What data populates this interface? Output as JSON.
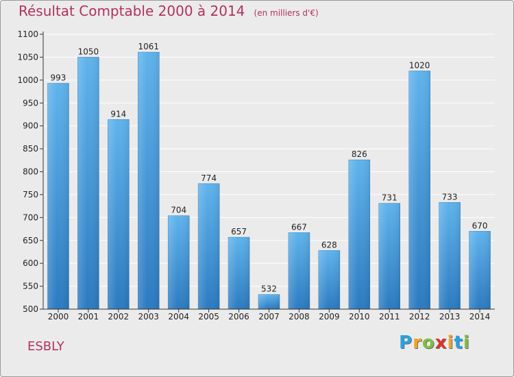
{
  "title": "Résultat Comptable 2000 à 2014",
  "subtitle": "(en milliers d'€)",
  "location": "ESBLY",
  "logo": {
    "letters": [
      {
        "ch": "P",
        "color": "#2aa2e0"
      },
      {
        "ch": "r",
        "color": "#f0a22a"
      },
      {
        "ch": "o",
        "color": "#7fbf3f"
      },
      {
        "ch": "x",
        "color": "#d9342b"
      },
      {
        "ch": "i",
        "color": "#f0a22a"
      },
      {
        "ch": "t",
        "color": "#2aa2e0"
      },
      {
        "ch": "i",
        "color": "#7fbf3f"
      }
    ]
  },
  "colors": {
    "bar_top": "#5fb3ec",
    "bar_bottom": "#2b7ac0",
    "title": "#b0325e",
    "plot_bg": "#ebebeb",
    "grid": "#ffffff"
  },
  "chart_data": {
    "type": "bar",
    "categories": [
      "2000",
      "2001",
      "2002",
      "2003",
      "2004",
      "2005",
      "2006",
      "2007",
      "2008",
      "2009",
      "2010",
      "2011",
      "2012",
      "2013",
      "2014"
    ],
    "values": [
      993,
      1050,
      914,
      1061,
      704,
      774,
      657,
      532,
      667,
      628,
      826,
      731,
      1020,
      733,
      670
    ],
    "ylim": [
      500,
      1100
    ],
    "yticks": [
      500,
      550,
      600,
      650,
      700,
      750,
      800,
      850,
      900,
      950,
      1000,
      1050,
      1100
    ],
    "grid": true,
    "xlabel": "",
    "ylabel": ""
  }
}
